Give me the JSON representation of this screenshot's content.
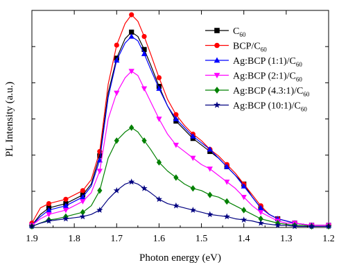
{
  "chart_data": {
    "type": "line",
    "title": "",
    "xlabel": "Photon energy (eV)",
    "ylabel": "PL Intensity (a.u.)",
    "xlim": [
      1.9,
      1.2
    ],
    "ylim": [
      0,
      1.0
    ],
    "x_reversed": true,
    "x_ticks": [
      1.9,
      1.8,
      1.7,
      1.6,
      1.5,
      1.4,
      1.3,
      1.2
    ],
    "x_tick_labels": [
      "1.9",
      "1.8",
      "1.7",
      "1.6",
      "1.5",
      "1.4",
      "1.3",
      "1.2"
    ],
    "y_tick_labels_shown": false,
    "grid": false,
    "legend_position": "top-right",
    "series": [
      {
        "name_main": "C",
        "name_sub": "60",
        "name_tail": "",
        "color": "#000000",
        "marker": "square",
        "x": [
          1.9,
          1.88,
          1.86,
          1.84,
          1.82,
          1.8,
          1.78,
          1.76,
          1.74,
          1.72,
          1.7,
          1.68,
          1.665,
          1.65,
          1.635,
          1.62,
          1.6,
          1.58,
          1.56,
          1.54,
          1.52,
          1.5,
          1.48,
          1.46,
          1.44,
          1.42,
          1.4,
          1.38,
          1.36,
          1.34,
          1.32,
          1.3,
          1.28,
          1.26,
          1.24,
          1.22,
          1.2
        ],
        "values": [
          0.01,
          0.06,
          0.09,
          0.1,
          0.11,
          0.13,
          0.15,
          0.2,
          0.33,
          0.62,
          0.78,
          0.87,
          0.9,
          0.88,
          0.82,
          0.75,
          0.65,
          0.56,
          0.49,
          0.45,
          0.41,
          0.38,
          0.35,
          0.32,
          0.28,
          0.24,
          0.2,
          0.14,
          0.09,
          0.06,
          0.04,
          0.03,
          0.02,
          0.015,
          0.01,
          0.01,
          0.01
        ]
      },
      {
        "name_main": "BCP/C",
        "name_sub": "60",
        "name_tail": "",
        "color": "#ff0000",
        "marker": "circle",
        "x": [
          1.9,
          1.88,
          1.86,
          1.84,
          1.82,
          1.8,
          1.78,
          1.76,
          1.74,
          1.72,
          1.7,
          1.68,
          1.665,
          1.65,
          1.635,
          1.62,
          1.6,
          1.58,
          1.56,
          1.54,
          1.52,
          1.5,
          1.48,
          1.46,
          1.44,
          1.42,
          1.4,
          1.38,
          1.36,
          1.34,
          1.32,
          1.3,
          1.28,
          1.26,
          1.24,
          1.22,
          1.2
        ],
        "values": [
          0.02,
          0.09,
          0.11,
          0.12,
          0.13,
          0.15,
          0.17,
          0.22,
          0.35,
          0.66,
          0.84,
          0.94,
          0.98,
          0.95,
          0.88,
          0.8,
          0.69,
          0.59,
          0.52,
          0.47,
          0.43,
          0.4,
          0.36,
          0.33,
          0.29,
          0.25,
          0.2,
          0.15,
          0.1,
          0.06,
          0.04,
          0.03,
          0.02,
          0.015,
          0.01,
          0.01,
          0.01
        ]
      },
      {
        "name_main": "Ag:BCP (1:1)/C",
        "name_sub": "60",
        "name_tail": "",
        "color": "#0000ff",
        "marker": "triangle-up",
        "x": [
          1.9,
          1.88,
          1.86,
          1.84,
          1.82,
          1.8,
          1.78,
          1.76,
          1.74,
          1.72,
          1.7,
          1.68,
          1.665,
          1.65,
          1.635,
          1.62,
          1.6,
          1.58,
          1.56,
          1.54,
          1.52,
          1.5,
          1.48,
          1.46,
          1.44,
          1.42,
          1.4,
          1.38,
          1.36,
          1.34,
          1.32,
          1.3,
          1.28,
          1.26,
          1.24,
          1.22,
          1.2
        ],
        "values": [
          0.01,
          0.05,
          0.08,
          0.09,
          0.1,
          0.12,
          0.14,
          0.19,
          0.31,
          0.6,
          0.77,
          0.85,
          0.88,
          0.86,
          0.8,
          0.73,
          0.64,
          0.56,
          0.5,
          0.46,
          0.42,
          0.39,
          0.36,
          0.32,
          0.28,
          0.24,
          0.19,
          0.14,
          0.09,
          0.06,
          0.04,
          0.03,
          0.02,
          0.015,
          0.01,
          0.01,
          0.01
        ]
      },
      {
        "name_main": "Ag:BCP (2:1)/C",
        "name_sub": "60",
        "name_tail": "",
        "color": "#ff00ff",
        "marker": "triangle-down",
        "x": [
          1.9,
          1.88,
          1.86,
          1.84,
          1.82,
          1.8,
          1.78,
          1.76,
          1.74,
          1.72,
          1.7,
          1.68,
          1.665,
          1.65,
          1.635,
          1.62,
          1.6,
          1.58,
          1.56,
          1.54,
          1.52,
          1.5,
          1.48,
          1.46,
          1.44,
          1.42,
          1.4,
          1.38,
          1.36,
          1.34,
          1.32,
          1.3,
          1.28,
          1.26,
          1.24,
          1.22,
          1.2
        ],
        "values": [
          0.01,
          0.04,
          0.06,
          0.07,
          0.08,
          0.1,
          0.12,
          0.16,
          0.26,
          0.5,
          0.62,
          0.69,
          0.72,
          0.7,
          0.64,
          0.58,
          0.5,
          0.43,
          0.38,
          0.35,
          0.32,
          0.29,
          0.27,
          0.24,
          0.21,
          0.18,
          0.14,
          0.1,
          0.07,
          0.05,
          0.03,
          0.02,
          0.02,
          0.015,
          0.01,
          0.01,
          0.01
        ]
      },
      {
        "name_main": "Ag:BCP (4.3:1)/C",
        "name_sub": "60",
        "name_tail": "",
        "color": "#008000",
        "marker": "diamond",
        "x": [
          1.9,
          1.88,
          1.86,
          1.84,
          1.82,
          1.8,
          1.78,
          1.76,
          1.74,
          1.72,
          1.7,
          1.68,
          1.665,
          1.65,
          1.635,
          1.62,
          1.6,
          1.58,
          1.56,
          1.54,
          1.52,
          1.5,
          1.48,
          1.46,
          1.44,
          1.42,
          1.4,
          1.38,
          1.36,
          1.34,
          1.32,
          1.3,
          1.28,
          1.26,
          1.24,
          1.22,
          1.2
        ],
        "values": [
          0.005,
          0.02,
          0.035,
          0.04,
          0.05,
          0.06,
          0.07,
          0.1,
          0.17,
          0.32,
          0.4,
          0.44,
          0.46,
          0.44,
          0.4,
          0.36,
          0.3,
          0.26,
          0.23,
          0.2,
          0.18,
          0.17,
          0.15,
          0.14,
          0.12,
          0.1,
          0.08,
          0.06,
          0.04,
          0.03,
          0.02,
          0.015,
          0.01,
          0.01,
          0.005,
          0.005,
          0.005
        ]
      },
      {
        "name_main": "Ag:BCP (10:1)/C",
        "name_sub": "60",
        "name_tail": "",
        "color": "#000080",
        "marker": "star",
        "x": [
          1.9,
          1.88,
          1.86,
          1.84,
          1.82,
          1.8,
          1.78,
          1.76,
          1.74,
          1.72,
          1.7,
          1.68,
          1.665,
          1.65,
          1.635,
          1.62,
          1.6,
          1.58,
          1.56,
          1.54,
          1.52,
          1.5,
          1.48,
          1.46,
          1.44,
          1.42,
          1.4,
          1.38,
          1.36,
          1.34,
          1.32,
          1.3,
          1.28,
          1.26,
          1.24,
          1.22,
          1.2
        ],
        "values": [
          0.005,
          0.02,
          0.03,
          0.035,
          0.04,
          0.045,
          0.05,
          0.06,
          0.08,
          0.13,
          0.17,
          0.2,
          0.21,
          0.2,
          0.18,
          0.16,
          0.13,
          0.11,
          0.1,
          0.09,
          0.08,
          0.07,
          0.06,
          0.055,
          0.05,
          0.04,
          0.035,
          0.03,
          0.02,
          0.015,
          0.01,
          0.01,
          0.005,
          0.005,
          0.005,
          0.005,
          0.005
        ]
      }
    ]
  }
}
